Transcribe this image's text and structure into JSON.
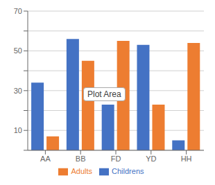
{
  "chart_data": {
    "type": "bar",
    "categories": [
      "AA",
      "BB",
      "FD",
      "YD",
      "HH"
    ],
    "series": [
      {
        "name": "Childrens",
        "color": "#4472C4",
        "values": [
          34,
          56,
          23,
          53,
          5
        ]
      },
      {
        "name": "Adults",
        "color": "#ED7D31",
        "values": [
          7,
          45,
          55,
          23,
          54
        ]
      }
    ],
    "ylim": [
      0,
      70
    ],
    "yticks": [
      {
        "value": 0,
        "label": ""
      },
      10,
      {
        "value": 20,
        "label": ""
      },
      30,
      {
        "value": 40,
        "label": ""
      },
      50,
      {
        "value": 60,
        "label": ""
      },
      70
    ],
    "grid": true,
    "legend": "bottom",
    "annotations": [
      {
        "text": "Plot Area"
      }
    ]
  }
}
